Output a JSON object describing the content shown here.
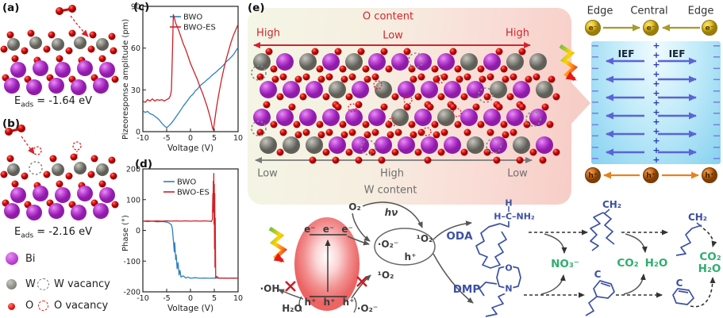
{
  "panels": {
    "a": {
      "label": "(a)",
      "eads": {
        "prefix": "E",
        "sub": "ads",
        "suffix": " = -1.64 eV"
      }
    },
    "b": {
      "label": "(b)",
      "eads": {
        "prefix": "E",
        "sub": "ads",
        "suffix": " = -2.16 eV"
      }
    },
    "c": {
      "label": "(c)"
    },
    "d": {
      "label": "(d)"
    },
    "e": {
      "label": "(e)",
      "o_content": "O content",
      "high_left": "High",
      "low_mid": "Low",
      "high_right": "High",
      "low_left": "Low",
      "high_mid": "High",
      "low_right": "Low",
      "w_content": "W content"
    }
  },
  "atom_legend": {
    "bi": "Bi",
    "w": "W",
    "w_vacancy": "W vacancy",
    "o": "O",
    "o_vacancy": "O vacancy"
  },
  "right_panel": {
    "edge_left": "Edge",
    "central": "Central",
    "edge_right": "Edge",
    "electron": "e⁻",
    "hole": "h⁺",
    "ief_left": "IEF",
    "ief_right": "IEF",
    "minus_sign": "−",
    "plus_sign": "+"
  },
  "mechanism": {
    "o2": "O₂",
    "hnu": "hν",
    "superoxide": "·O₂⁻",
    "singlet": "¹O₂",
    "hplus": "h⁺",
    "singlet_blocked": "¹O₂",
    "superoxide_bottom": "·O₂⁻",
    "oh": "·OH",
    "h2o": "H₂O",
    "electrons": "e⁻ e⁻ e⁻",
    "holes": "h⁺ h⁺ h⁺",
    "oda": "ODA",
    "dmp": "DMP",
    "no3": "NO₃⁻",
    "co2": "CO₂",
    "h2o_b": "H₂O",
    "co2_c": "CO₂",
    "h2o_c": "H₂O",
    "ch2_a": "CH₂",
    "ch2_b": "CH₂",
    "c_a": "C",
    "c_b": "C",
    "h_top": "H",
    "head_group": "H–C–NH₂",
    "morpholine_o": "O",
    "morpholine_n": "N"
  },
  "colors": {
    "bi": "#bb41d3",
    "w": "#8d8d87",
    "o": "#e01313",
    "accent_red": "#d3242c",
    "gray_arrow": "#7a7a7a",
    "bwo_blue": "#2f7fbd",
    "bwoes_red": "#cf2026",
    "minus": "#7b7de0",
    "plus": "#2636b8",
    "ief_arrow": "#5b63d8",
    "electron_fill": "#e6c52c",
    "hole_fill": "#cf6f1c",
    "olive_arrow": "#a89b2a",
    "orange_arrow": "#e8821e",
    "molecule_blue": "#3c50a5",
    "product_green": "#2fae6e"
  },
  "chart_data": [
    {
      "type": "line",
      "title": "(c)",
      "xlabel": "Voltage (V)",
      "ylabel": "Pizeoresponse amplitude (pm)",
      "xlim": [
        -10,
        10
      ],
      "ylim": [
        0,
        90
      ],
      "xticks": [
        -10,
        -5,
        0,
        5,
        10
      ],
      "yticks": [
        0,
        30,
        60,
        90
      ],
      "legend_position": "top-center",
      "grid": false,
      "series": [
        {
          "name": "BWO",
          "color": "#2f7fbd",
          "points": [
            [
              -10,
              15
            ],
            [
              -9.5,
              13.8
            ],
            [
              -9,
              14.6
            ],
            [
              -8.5,
              12.9
            ],
            [
              -8,
              12.3
            ],
            [
              -7.5,
              11.1
            ],
            [
              -7,
              9.8
            ],
            [
              -6.5,
              8.2
            ],
            [
              -6,
              5.9
            ],
            [
              -5.5,
              4.2
            ],
            [
              -5,
              2.8
            ],
            [
              -4.5,
              4.4
            ],
            [
              -4,
              6.1
            ],
            [
              -3.5,
              8.3
            ],
            [
              -3,
              10.8
            ],
            [
              -2.5,
              13.2
            ],
            [
              -2,
              15.8
            ],
            [
              -1.5,
              18.4
            ],
            [
              -1,
              20.6
            ],
            [
              -0.5,
              22.9
            ],
            [
              0,
              25.3
            ],
            [
              0.5,
              26.8
            ],
            [
              1,
              29.2
            ],
            [
              1.5,
              30.7
            ],
            [
              2,
              32.9
            ],
            [
              2.5,
              34.4
            ],
            [
              3,
              35.8
            ],
            [
              3.5,
              37.3
            ],
            [
              4,
              38.7
            ],
            [
              4.5,
              40.4
            ],
            [
              5,
              41.8
            ],
            [
              5.5,
              43.2
            ],
            [
              6,
              44.9
            ],
            [
              6.5,
              46.3
            ],
            [
              7,
              48.1
            ],
            [
              7.5,
              50.2
            ],
            [
              8,
              51.6
            ],
            [
              8.5,
              53.4
            ],
            [
              9,
              55.2
            ],
            [
              9.5,
              57.8
            ],
            [
              10,
              60.5
            ]
          ]
        },
        {
          "name": "BWO-ES",
          "color": "#cf2026",
          "points": [
            [
              -10,
              22
            ],
            [
              -9.5,
              21
            ],
            [
              -9,
              23
            ],
            [
              -8.5,
              22
            ],
            [
              -8,
              23.5
            ],
            [
              -7.5,
              22
            ],
            [
              -7,
              23
            ],
            [
              -6.5,
              22.5
            ],
            [
              -6,
              23
            ],
            [
              -5.5,
              22
            ],
            [
              -5,
              23
            ],
            [
              -4.5,
              24
            ],
            [
              -4.2,
              26
            ],
            [
              -4,
              30
            ],
            [
              -3.8,
              55
            ],
            [
              -3.6,
              84
            ],
            [
              -3.4,
              82
            ],
            [
              -3.2,
              79
            ],
            [
              -3,
              77
            ],
            [
              -2.5,
              73
            ],
            [
              -2,
              68
            ],
            [
              -1.5,
              63
            ],
            [
              -1,
              59
            ],
            [
              -0.5,
              54
            ],
            [
              0,
              49
            ],
            [
              0.5,
              45
            ],
            [
              1,
              41
            ],
            [
              1.5,
              37
            ],
            [
              2,
              32
            ],
            [
              2.5,
              28
            ],
            [
              3,
              23
            ],
            [
              3.5,
              18
            ],
            [
              4,
              12
            ],
            [
              4.3,
              8
            ],
            [
              4.6,
              3
            ],
            [
              4.8,
              1
            ],
            [
              5,
              6
            ],
            [
              5.5,
              18
            ],
            [
              6,
              28
            ],
            [
              6.5,
              37
            ],
            [
              7,
              45
            ],
            [
              7.5,
              52
            ],
            [
              8,
              58
            ],
            [
              8.5,
              64
            ],
            [
              9,
              69
            ],
            [
              9.5,
              73
            ],
            [
              10,
              77
            ]
          ]
        }
      ]
    },
    {
      "type": "line",
      "title": "(d)",
      "xlabel": "Voltage (V)",
      "ylabel": "Phase (°)",
      "xlim": [
        -10,
        10
      ],
      "ylim": [
        -200,
        200
      ],
      "xticks": [
        -10,
        -5,
        0,
        5,
        10
      ],
      "yticks": [
        -200,
        -100,
        0,
        100,
        200
      ],
      "legend_position": "top-left",
      "grid": false,
      "series": [
        {
          "name": "BWO",
          "color": "#2f7fbd",
          "points": [
            [
              -10,
              30
            ],
            [
              -9,
              29
            ],
            [
              -8,
              30
            ],
            [
              -7,
              28
            ],
            [
              -6,
              29
            ],
            [
              -5,
              27
            ],
            [
              -4.5,
              24
            ],
            [
              -4,
              18
            ],
            [
              -3.8,
              5
            ],
            [
              -3.6,
              -30
            ],
            [
              -3.4,
              -70
            ],
            [
              -3.3,
              -40
            ],
            [
              -3.1,
              -95
            ],
            [
              -3,
              -80
            ],
            [
              -2.8,
              -125
            ],
            [
              -2.6,
              -105
            ],
            [
              -2.4,
              -145
            ],
            [
              -2.2,
              -130
            ],
            [
              -2,
              -152
            ],
            [
              -1.5,
              -148
            ],
            [
              -1,
              -155
            ],
            [
              -0.5,
              -152
            ],
            [
              0,
              -156
            ],
            [
              1,
              -154
            ],
            [
              2,
              -156
            ],
            [
              3,
              -155
            ],
            [
              4,
              -156
            ],
            [
              5,
              -155
            ],
            [
              6,
              -156
            ],
            [
              7,
              -155
            ],
            [
              8,
              -156
            ],
            [
              9,
              -155
            ],
            [
              10,
              -156
            ]
          ]
        },
        {
          "name": "BWO-ES",
          "color": "#cf2026",
          "points": [
            [
              -10,
              30
            ],
            [
              -9,
              31
            ],
            [
              -8,
              30
            ],
            [
              -7,
              31
            ],
            [
              -6,
              30
            ],
            [
              -5,
              31
            ],
            [
              -4,
              30
            ],
            [
              -3,
              31
            ],
            [
              -2,
              30
            ],
            [
              -1,
              31
            ],
            [
              0,
              30
            ],
            [
              1,
              31
            ],
            [
              2,
              30
            ],
            [
              3,
              31
            ],
            [
              4,
              30
            ],
            [
              4.4,
              29
            ],
            [
              4.6,
              35
            ],
            [
              4.7,
              120
            ],
            [
              4.75,
              60
            ],
            [
              4.8,
              160
            ],
            [
              4.85,
              90
            ],
            [
              4.9,
              185
            ],
            [
              4.95,
              20
            ],
            [
              5,
              150
            ],
            [
              5.05,
              -60
            ],
            [
              5.1,
              120
            ],
            [
              5.15,
              -120
            ],
            [
              5.2,
              40
            ],
            [
              5.3,
              -155
            ],
            [
              5.5,
              -150
            ],
            [
              6,
              -156
            ],
            [
              7,
              -155
            ],
            [
              8,
              -156
            ],
            [
              9,
              -155
            ],
            [
              10,
              -156
            ]
          ]
        }
      ]
    }
  ]
}
